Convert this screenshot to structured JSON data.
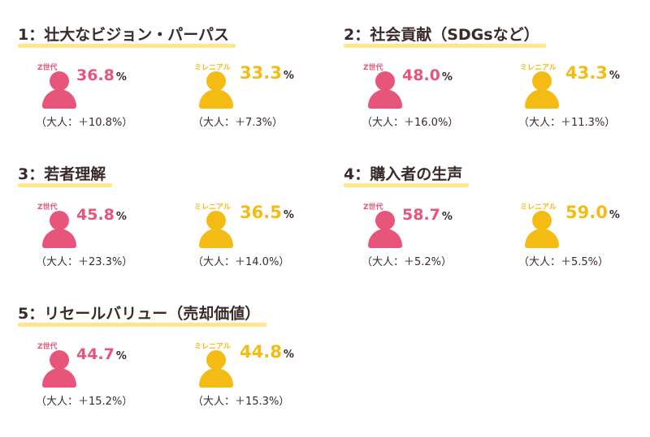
{
  "labels": {
    "gen_z": "Z世代",
    "millennial": "ミレニアル",
    "unit": "%"
  },
  "colors": {
    "gen_z": "#e8557a",
    "millennial": "#f5bb15",
    "underline": "#ffe68a"
  },
  "sections": [
    {
      "title": "1：壮大なビジョン・パーパス",
      "gen_z": {
        "value": "36.8",
        "adult": "（大人：＋10.8%）"
      },
      "millennial": {
        "value": "33.3",
        "adult": "（大人：＋7.3%）"
      }
    },
    {
      "title": "2：社会貢献（SDGsなど）",
      "gen_z": {
        "value": "48.0",
        "adult": "（大人：＋16.0%）"
      },
      "millennial": {
        "value": "43.3",
        "adult": "（大人：＋11.3%）"
      }
    },
    {
      "title": "3：若者理解",
      "gen_z": {
        "value": "45.8",
        "adult": "（大人：＋23.3%）"
      },
      "millennial": {
        "value": "36.5",
        "adult": "（大人：＋14.0%）"
      }
    },
    {
      "title": "4：購入者の生声",
      "gen_z": {
        "value": "58.7",
        "adult": "（大人：＋5.2%）"
      },
      "millennial": {
        "value": "59.0",
        "adult": "（大人：＋5.5%）"
      }
    },
    {
      "title": "5：リセールバリュー（売却価値）",
      "gen_z": {
        "value": "44.7",
        "adult": "（大人：＋15.2%）"
      },
      "millennial": {
        "value": "44.8",
        "adult": "（大人：＋15.3%）"
      }
    }
  ]
}
